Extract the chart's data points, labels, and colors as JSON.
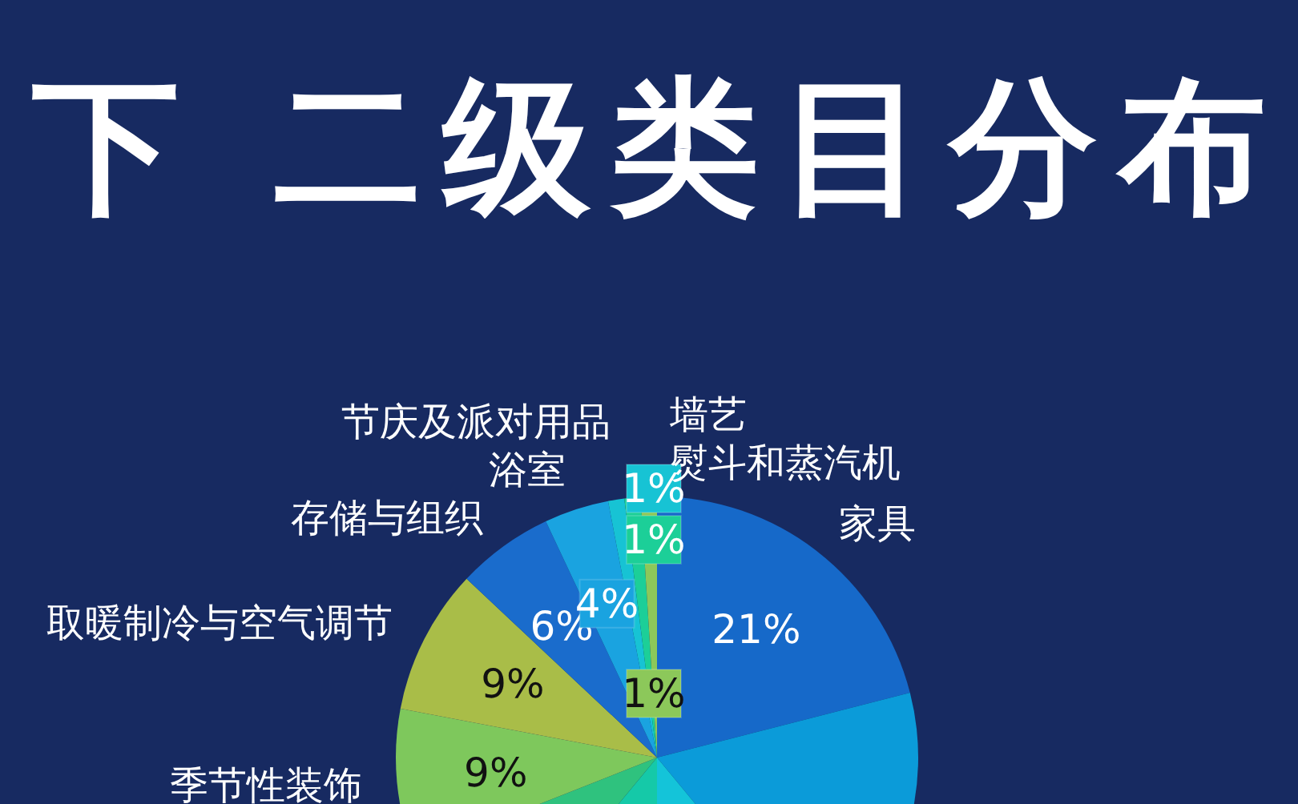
{
  "chart_data": {
    "type": "pie",
    "title": "下 二级类目分布",
    "categories": [
      "家具",
      null,
      null,
      null,
      null,
      "季节性装饰",
      "取暖制冷与空气调节",
      "存储与组织",
      "浴室",
      "节庆及派对用品",
      "熨斗和蒸汽机",
      "墙艺"
    ],
    "values": [
      21,
      18,
      11,
      11,
      8,
      9,
      9,
      6,
      4,
      1,
      1,
      1
    ],
    "colors": [
      "#1669c9",
      "#0b9bd9",
      "#14c4d9",
      "#15c9a8",
      "#2fc27e",
      "#7ec85c",
      "#a9bd48",
      "#1a6ccc",
      "#1aa3e0",
      "#17c3d4",
      "#1ccf98",
      "#8cc85a"
    ],
    "value_labels": [
      "21%",
      null,
      null,
      null,
      null,
      "9%",
      "9%",
      "6%",
      "4%",
      "1%",
      "1%",
      "1%"
    ]
  }
}
